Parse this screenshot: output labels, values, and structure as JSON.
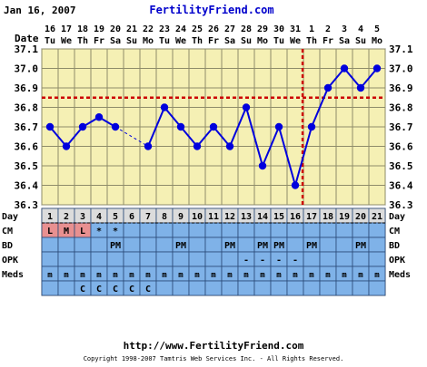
{
  "header": {
    "date": "Jan 16, 2007",
    "site": "FertilityFriend.com"
  },
  "row_labels": {
    "date": "Date",
    "day": "Day",
    "cm": "CM",
    "bd": "BD",
    "opk": "OPK",
    "meds": "Meds"
  },
  "footer": {
    "url": "http://www.FertilityFriend.com",
    "copyright": "Copyright 1998-2007 Tamtris Web Services Inc. - All Rights Reserved."
  },
  "colors": {
    "plot_bg": "#f5f0b4",
    "grid": "#8e8c6a",
    "series": "#0000dd",
    "coverline": "#cc0000",
    "table_bg": "#7fb2e8",
    "cm_pink": "#e89090",
    "title_blue": "#0000cc"
  },
  "chart_data": {
    "type": "line",
    "title": "",
    "x_dates": [
      "16",
      "17",
      "18",
      "19",
      "20",
      "21",
      "22",
      "23",
      "24",
      "25",
      "26",
      "27",
      "28",
      "29",
      "30",
      "31",
      "1",
      "2",
      "3",
      "4",
      "5"
    ],
    "x_weekdays": [
      "Tu",
      "We",
      "Th",
      "Fr",
      "Sa",
      "Su",
      "Mo",
      "Tu",
      "We",
      "Th",
      "Fr",
      "Sa",
      "Su",
      "Mo",
      "Tu",
      "We",
      "Th",
      "Fr",
      "Sa",
      "Su",
      "Mo"
    ],
    "cycle_days": [
      "1",
      "2",
      "3",
      "4",
      "5",
      "6",
      "7",
      "8",
      "9",
      "10",
      "11",
      "12",
      "13",
      "14",
      "15",
      "16",
      "17",
      "18",
      "19",
      "20",
      "21"
    ],
    "temperatures": [
      36.7,
      36.6,
      36.7,
      36.75,
      36.7,
      null,
      36.6,
      36.8,
      36.7,
      36.6,
      36.7,
      36.6,
      36.8,
      36.5,
      36.7,
      36.4,
      36.7,
      36.9,
      37.0,
      36.9,
      37.0
    ],
    "y_ticks": [
      "37.1",
      "37.0",
      "36.9",
      "36.8",
      "36.7",
      "36.6",
      "36.5",
      "36.4",
      "36.3"
    ],
    "ylim": [
      36.3,
      37.1
    ],
    "coverline": 36.85,
    "ovulation_day": 17,
    "grid": true,
    "cm": [
      "L",
      "M",
      "L",
      "*",
      "*",
      "",
      "",
      "",
      "",
      "",
      "",
      "",
      "",
      "",
      "",
      "",
      "",
      "",
      "",
      "",
      ""
    ],
    "bd": [
      "",
      "",
      "",
      "",
      "PM",
      "",
      "",
      "",
      "PM",
      "",
      "",
      "PM",
      "",
      "PM",
      "PM",
      "",
      "PM",
      "",
      "",
      "PM",
      ""
    ],
    "opk": [
      "",
      "",
      "",
      "",
      "",
      "",
      "",
      "",
      "",
      "",
      "",
      "",
      "-",
      "-",
      "-",
      "-",
      "",
      "",
      "",
      "",
      ""
    ],
    "meds": [
      "m",
      "m",
      "m",
      "m",
      "m",
      "m",
      "m",
      "m",
      "m",
      "m",
      "m",
      "m",
      "m",
      "m",
      "m",
      "m",
      "m",
      "m",
      "m",
      "m",
      "m"
    ],
    "meds2": [
      "",
      "",
      "C",
      "C",
      "C",
      "C",
      "C",
      "",
      "",
      "",
      "",
      "",
      "",
      "",
      "",
      "",
      "",
      "",
      "",
      "",
      ""
    ]
  }
}
